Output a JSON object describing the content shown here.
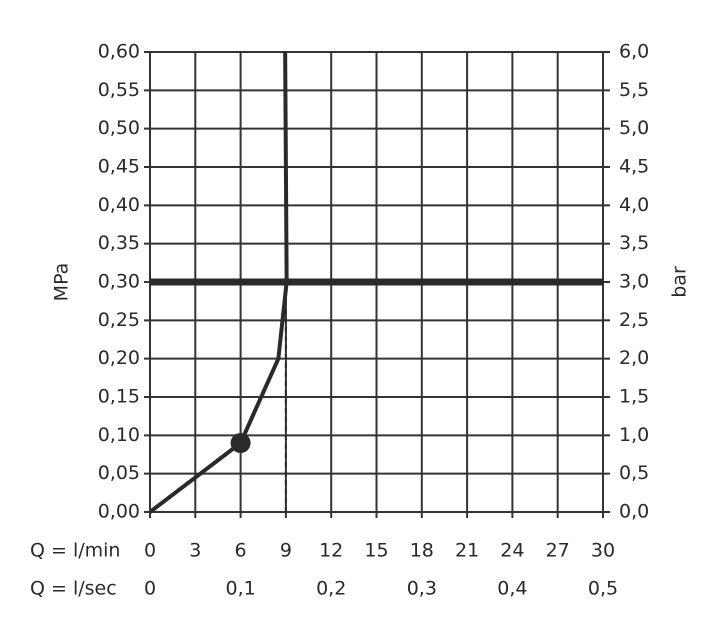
{
  "chart_data": {
    "type": "line",
    "x": [
      0,
      6,
      8.5,
      9.05,
      8.95
    ],
    "values": [
      0,
      0.09,
      0.2,
      0.3,
      0.6
    ],
    "color": "#2a2a2a",
    "marker": {
      "x": 6,
      "y": 0.09
    },
    "hline": 0.3,
    "vline": {
      "x": 9,
      "y": [
        0,
        0.3
      ]
    },
    "xlabel": "Q = l/min",
    "x2label": "Q = l/sec",
    "ylabel": "MPa",
    "y2label": "bar",
    "xlim": [
      0,
      30
    ],
    "xticks": [
      0,
      3,
      6,
      9,
      12,
      15,
      18,
      21,
      24,
      27,
      30
    ],
    "x2lim": [
      0,
      0.5
    ],
    "x2ticks": [
      0,
      {
        "value": 0.1,
        "label": "0,1"
      },
      {
        "value": 0.2,
        "label": "0,2"
      },
      {
        "value": 0.3,
        "label": "0,3"
      },
      {
        "value": 0.4,
        "label": "0,4"
      },
      {
        "value": 0.5,
        "label": "0,5"
      }
    ],
    "ylim": [
      0,
      0.6
    ],
    "yticks": [
      {
        "value": 0,
        "label": "0,00"
      },
      {
        "value": 0.05,
        "label": "0,05"
      },
      {
        "value": 0.1,
        "label": "0,10"
      },
      {
        "value": 0.15,
        "label": "0,15"
      },
      {
        "value": 0.2,
        "label": "0,20"
      },
      {
        "value": 0.25,
        "label": "0,25"
      },
      {
        "value": 0.3,
        "label": "0,30"
      },
      {
        "value": 0.35,
        "label": "0,35"
      },
      {
        "value": 0.4,
        "label": "0,40"
      },
      {
        "value": 0.45,
        "label": "0,45"
      },
      {
        "value": 0.5,
        "label": "0,50"
      },
      {
        "value": 0.55,
        "label": "0,55"
      },
      {
        "value": 0.6,
        "label": "0,60"
      }
    ],
    "y2lim": [
      0,
      6
    ],
    "y2ticks": [
      {
        "value": 0,
        "label": "0,0"
      },
      {
        "value": 0.5,
        "label": "0,5"
      },
      {
        "value": 1,
        "label": "1,0"
      },
      {
        "value": 1.5,
        "label": "1,5"
      },
      {
        "value": 2,
        "label": "2,0"
      },
      {
        "value": 2.5,
        "label": "2,5"
      },
      {
        "value": 3,
        "label": "3,0"
      },
      {
        "value": 3.5,
        "label": "3,5"
      },
      {
        "value": 4,
        "label": "4,0"
      },
      {
        "value": 4.5,
        "label": "4,5"
      },
      {
        "value": 5,
        "label": "5,0"
      },
      {
        "value": 5.5,
        "label": "5,5"
      },
      {
        "value": 6,
        "label": "6,0"
      }
    ],
    "grid": true
  }
}
